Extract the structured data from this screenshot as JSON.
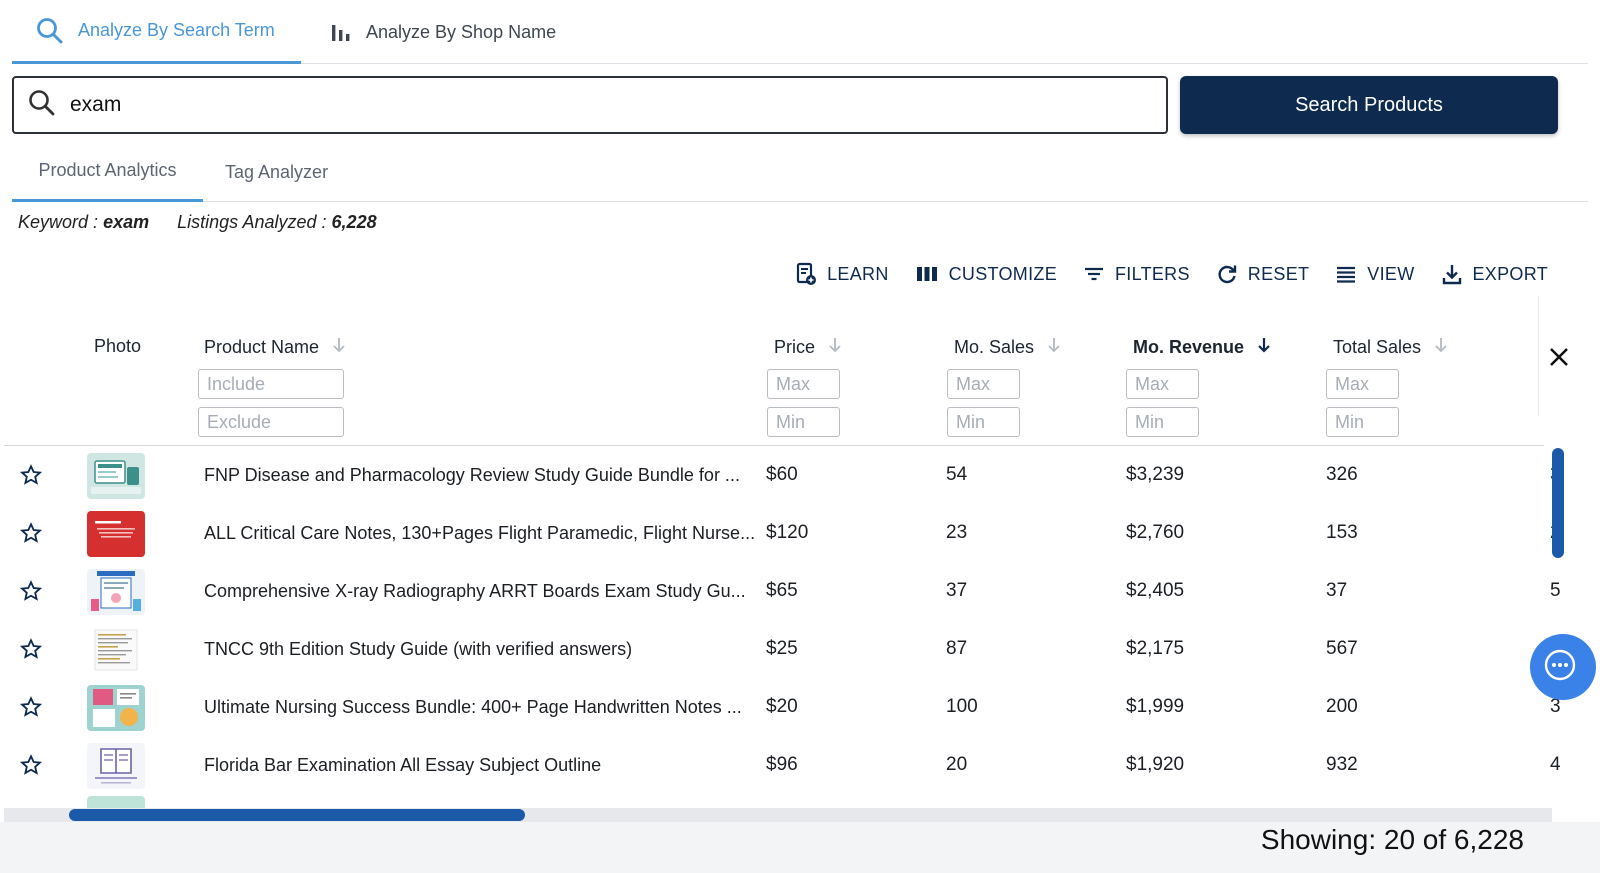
{
  "top_tabs": {
    "search_term": "Analyze By Search Term",
    "shop_name": "Analyze By Shop Name"
  },
  "search": {
    "value": "exam",
    "button_label": "Search Products"
  },
  "sub_tabs": {
    "product_analytics": "Product Analytics",
    "tag_analyzer": "Tag Analyzer"
  },
  "info": {
    "keyword_label": "Keyword :",
    "keyword_value": "exam",
    "listings_label": "Listings Analyzed :",
    "listings_value": "6,228"
  },
  "toolbar": {
    "learn": "LEARN",
    "customize": "CUSTOMIZE",
    "filters": "FILTERS",
    "reset": "RESET",
    "view": "VIEW",
    "export": "EXPORT"
  },
  "table": {
    "headers": {
      "photo": "Photo",
      "product_name": "Product Name",
      "price": "Price",
      "mo_sales": "Mo. Sales",
      "mo_revenue": "Mo. Revenue",
      "total_sales": "Total Sales"
    },
    "filters": {
      "include": "Include",
      "exclude": "Exclude",
      "max": "Max",
      "min": "Min"
    },
    "rows": [
      {
        "name": "FNP Disease and Pharmacology Review Study Guide Bundle for ...",
        "price": "$60",
        "mo_sales": "54",
        "mo_revenue": "$3,239",
        "total_sales": "326",
        "cut": "3"
      },
      {
        "name": "ALL Critical Care Notes, 130+Pages Flight Paramedic, Flight Nurse...",
        "price": "$120",
        "mo_sales": "23",
        "mo_revenue": "$2,760",
        "total_sales": "153",
        "cut": "2"
      },
      {
        "name": "Comprehensive X-ray Radiography ARRT Boards Exam Study Gu...",
        "price": "$65",
        "mo_sales": "37",
        "mo_revenue": "$2,405",
        "total_sales": "37",
        "cut": "5"
      },
      {
        "name": "TNCC 9th Edition Study Guide (with verified answers)",
        "price": "$25",
        "mo_sales": "87",
        "mo_revenue": "$2,175",
        "total_sales": "567",
        "cut": ""
      },
      {
        "name": "Ultimate Nursing Success Bundle: 400+ Page Handwritten Notes ...",
        "price": "$20",
        "mo_sales": "100",
        "mo_revenue": "$1,999",
        "total_sales": "200",
        "cut": "3"
      },
      {
        "name": "Florida Bar Examination All Essay Subject Outline",
        "price": "$96",
        "mo_sales": "20",
        "mo_revenue": "$1,920",
        "total_sales": "932",
        "cut": "4"
      }
    ]
  },
  "footer": {
    "showing": "Showing: 20 of 6,228"
  },
  "thumbs": [
    {
      "theme": "tablet-teal",
      "bg": "#cfe6e3",
      "fg": "#3d8f8a"
    },
    {
      "theme": "red-book",
      "bg": "#d62f2f",
      "fg": "#ffffff"
    },
    {
      "theme": "xray-guide",
      "bg": "#eef3f7",
      "fg": "#2a6cc2"
    },
    {
      "theme": "text-page",
      "bg": "#fafafa",
      "fg": "#c6a24a"
    },
    {
      "theme": "nursing-bundle",
      "bg": "#9fd3cf",
      "fg": "#e05a84"
    },
    {
      "theme": "book-outline",
      "bg": "#f4f5fb",
      "fg": "#6b63a6"
    }
  ],
  "icons": {
    "search": "search-icon",
    "bar_chart": "bar-chart-icon",
    "learn": "learn-icon",
    "customize": "columns-icon",
    "filters": "filter-icon",
    "reset": "reset-icon",
    "view": "view-list-icon",
    "export": "download-icon",
    "star": "star-outline-icon",
    "sort": "sort-arrow-icon",
    "close": "close-icon",
    "chat": "chat-icon"
  },
  "colors": {
    "accent": "#4a97d8",
    "navy": "#0f2a4f",
    "scroll": "#1a5aa8"
  }
}
